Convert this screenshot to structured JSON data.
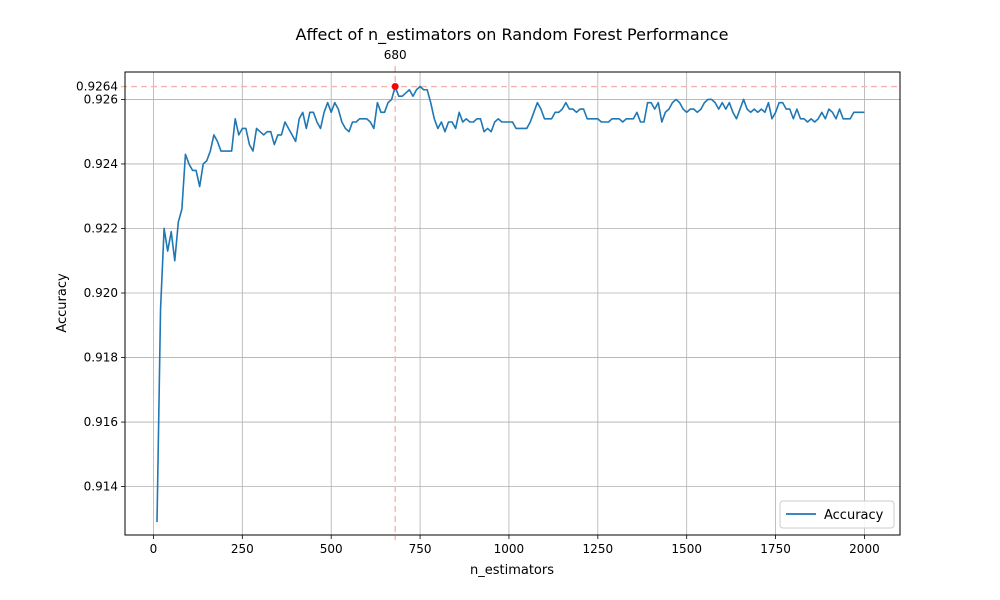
{
  "chart_data": {
    "type": "line",
    "title": "Affect of n_estimators on Random Forest Performance",
    "xlabel": "n_estimators",
    "ylabel": "Accuracy",
    "xlim": [
      -80,
      2100
    ],
    "ylim": [
      0.9125,
      0.92685
    ],
    "x_ticks": [
      0,
      250,
      500,
      750,
      1000,
      1250,
      1500,
      1750,
      2000
    ],
    "x_tick_labels": [
      "0",
      "250",
      "500",
      "750",
      "1000",
      "1250",
      "1500",
      "1750",
      "2000"
    ],
    "y_ticks": [
      0.914,
      0.916,
      0.918,
      0.92,
      0.922,
      0.924,
      0.926
    ],
    "y_tick_labels": [
      "0.914",
      "0.916",
      "0.918",
      "0.920",
      "0.922",
      "0.924",
      "0.926"
    ],
    "grid": true,
    "legend": {
      "position": "bottom-right",
      "entries": [
        "Accuracy"
      ]
    },
    "colors": {
      "series": "#1f77b4",
      "highlight": "#ff0000",
      "reference_line": "#f4b6ad",
      "grid": "#b0b0b0"
    },
    "best_point": {
      "x": 680,
      "y": 0.9264,
      "x_label": "680",
      "y_label": "0.9264"
    },
    "series": [
      {
        "name": "Accuracy",
        "x": [
          10,
          20,
          30,
          40,
          50,
          60,
          70,
          80,
          90,
          100,
          110,
          120,
          130,
          140,
          150,
          160,
          170,
          180,
          190,
          200,
          210,
          220,
          230,
          240,
          250,
          260,
          270,
          280,
          290,
          300,
          310,
          320,
          330,
          340,
          350,
          360,
          370,
          380,
          390,
          400,
          410,
          420,
          430,
          440,
          450,
          460,
          470,
          480,
          490,
          500,
          510,
          520,
          530,
          540,
          550,
          560,
          570,
          580,
          590,
          600,
          610,
          620,
          630,
          640,
          650,
          660,
          670,
          680,
          690,
          700,
          710,
          720,
          730,
          740,
          750,
          760,
          770,
          780,
          790,
          800,
          810,
          820,
          830,
          840,
          850,
          860,
          870,
          880,
          890,
          900,
          910,
          920,
          930,
          940,
          950,
          960,
          970,
          980,
          990,
          1000,
          1010,
          1020,
          1030,
          1040,
          1050,
          1060,
          1070,
          1080,
          1090,
          1100,
          1110,
          1120,
          1130,
          1140,
          1150,
          1160,
          1170,
          1180,
          1190,
          1200,
          1210,
          1220,
          1230,
          1240,
          1250,
          1260,
          1270,
          1280,
          1290,
          1300,
          1310,
          1320,
          1330,
          1340,
          1350,
          1360,
          1370,
          1380,
          1390,
          1400,
          1410,
          1420,
          1430,
          1440,
          1450,
          1460,
          1470,
          1480,
          1490,
          1500,
          1510,
          1520,
          1530,
          1540,
          1550,
          1560,
          1570,
          1580,
          1590,
          1600,
          1610,
          1620,
          1630,
          1640,
          1650,
          1660,
          1670,
          1680,
          1690,
          1700,
          1710,
          1720,
          1730,
          1740,
          1750,
          1760,
          1770,
          1780,
          1790,
          1800,
          1810,
          1820,
          1830,
          1840,
          1850,
          1860,
          1870,
          1880,
          1890,
          1900,
          1910,
          1920,
          1930,
          1940,
          1950,
          1960,
          1970,
          1980,
          1990,
          2000
        ],
        "values": [
          0.9129,
          0.9195,
          0.922,
          0.9213,
          0.9219,
          0.921,
          0.9222,
          0.9226,
          0.9243,
          0.924,
          0.9238,
          0.9238,
          0.9233,
          0.924,
          0.9241,
          0.9244,
          0.9249,
          0.9247,
          0.9244,
          0.9244,
          0.9244,
          0.9244,
          0.9254,
          0.9249,
          0.9251,
          0.9251,
          0.9246,
          0.9244,
          0.9251,
          0.925,
          0.9249,
          0.925,
          0.925,
          0.9246,
          0.9249,
          0.9249,
          0.9253,
          0.9251,
          0.9249,
          0.9247,
          0.9254,
          0.9256,
          0.9251,
          0.9256,
          0.9256,
          0.9253,
          0.9251,
          0.9256,
          0.9259,
          0.9256,
          0.9259,
          0.9257,
          0.9253,
          0.9251,
          0.925,
          0.9253,
          0.9253,
          0.9254,
          0.9254,
          0.9254,
          0.9253,
          0.9251,
          0.9259,
          0.9256,
          0.9256,
          0.9259,
          0.926,
          0.9264,
          0.9261,
          0.9261,
          0.9262,
          0.9263,
          0.9261,
          0.9263,
          0.9264,
          0.9263,
          0.9263,
          0.9259,
          0.9254,
          0.9251,
          0.9253,
          0.925,
          0.9253,
          0.9253,
          0.9251,
          0.9256,
          0.9253,
          0.9254,
          0.9253,
          0.9253,
          0.9254,
          0.9254,
          0.925,
          0.9251,
          0.925,
          0.9253,
          0.9254,
          0.9253,
          0.9253,
          0.9253,
          0.9253,
          0.9251,
          0.9251,
          0.9251,
          0.9251,
          0.9253,
          0.9256,
          0.9259,
          0.9257,
          0.9254,
          0.9254,
          0.9254,
          0.9256,
          0.9256,
          0.9257,
          0.9259,
          0.9257,
          0.9257,
          0.9256,
          0.9257,
          0.9257,
          0.9254,
          0.9254,
          0.9254,
          0.9254,
          0.9253,
          0.9253,
          0.9253,
          0.9254,
          0.9254,
          0.9254,
          0.9253,
          0.9254,
          0.9254,
          0.9254,
          0.9256,
          0.9253,
          0.9253,
          0.9259,
          0.9259,
          0.9257,
          0.9259,
          0.9253,
          0.9256,
          0.9257,
          0.9259,
          0.926,
          0.9259,
          0.9257,
          0.9256,
          0.9257,
          0.9257,
          0.9256,
          0.9257,
          0.9259,
          0.926,
          0.926,
          0.9259,
          0.9257,
          0.9259,
          0.9257,
          0.9259,
          0.9256,
          0.9254,
          0.9257,
          0.926,
          0.9257,
          0.9256,
          0.9257,
          0.9256,
          0.9257,
          0.9256,
          0.9259,
          0.9254,
          0.9256,
          0.9259,
          0.9259,
          0.9257,
          0.9257,
          0.9254,
          0.9257,
          0.9254,
          0.9254,
          0.9253,
          0.9254,
          0.9253,
          0.9254,
          0.9256,
          0.9254,
          0.9257,
          0.9256,
          0.9254,
          0.9257,
          0.9254,
          0.9254,
          0.9254,
          0.9256,
          0.9256,
          0.9256,
          0.9256
        ]
      }
    ]
  }
}
